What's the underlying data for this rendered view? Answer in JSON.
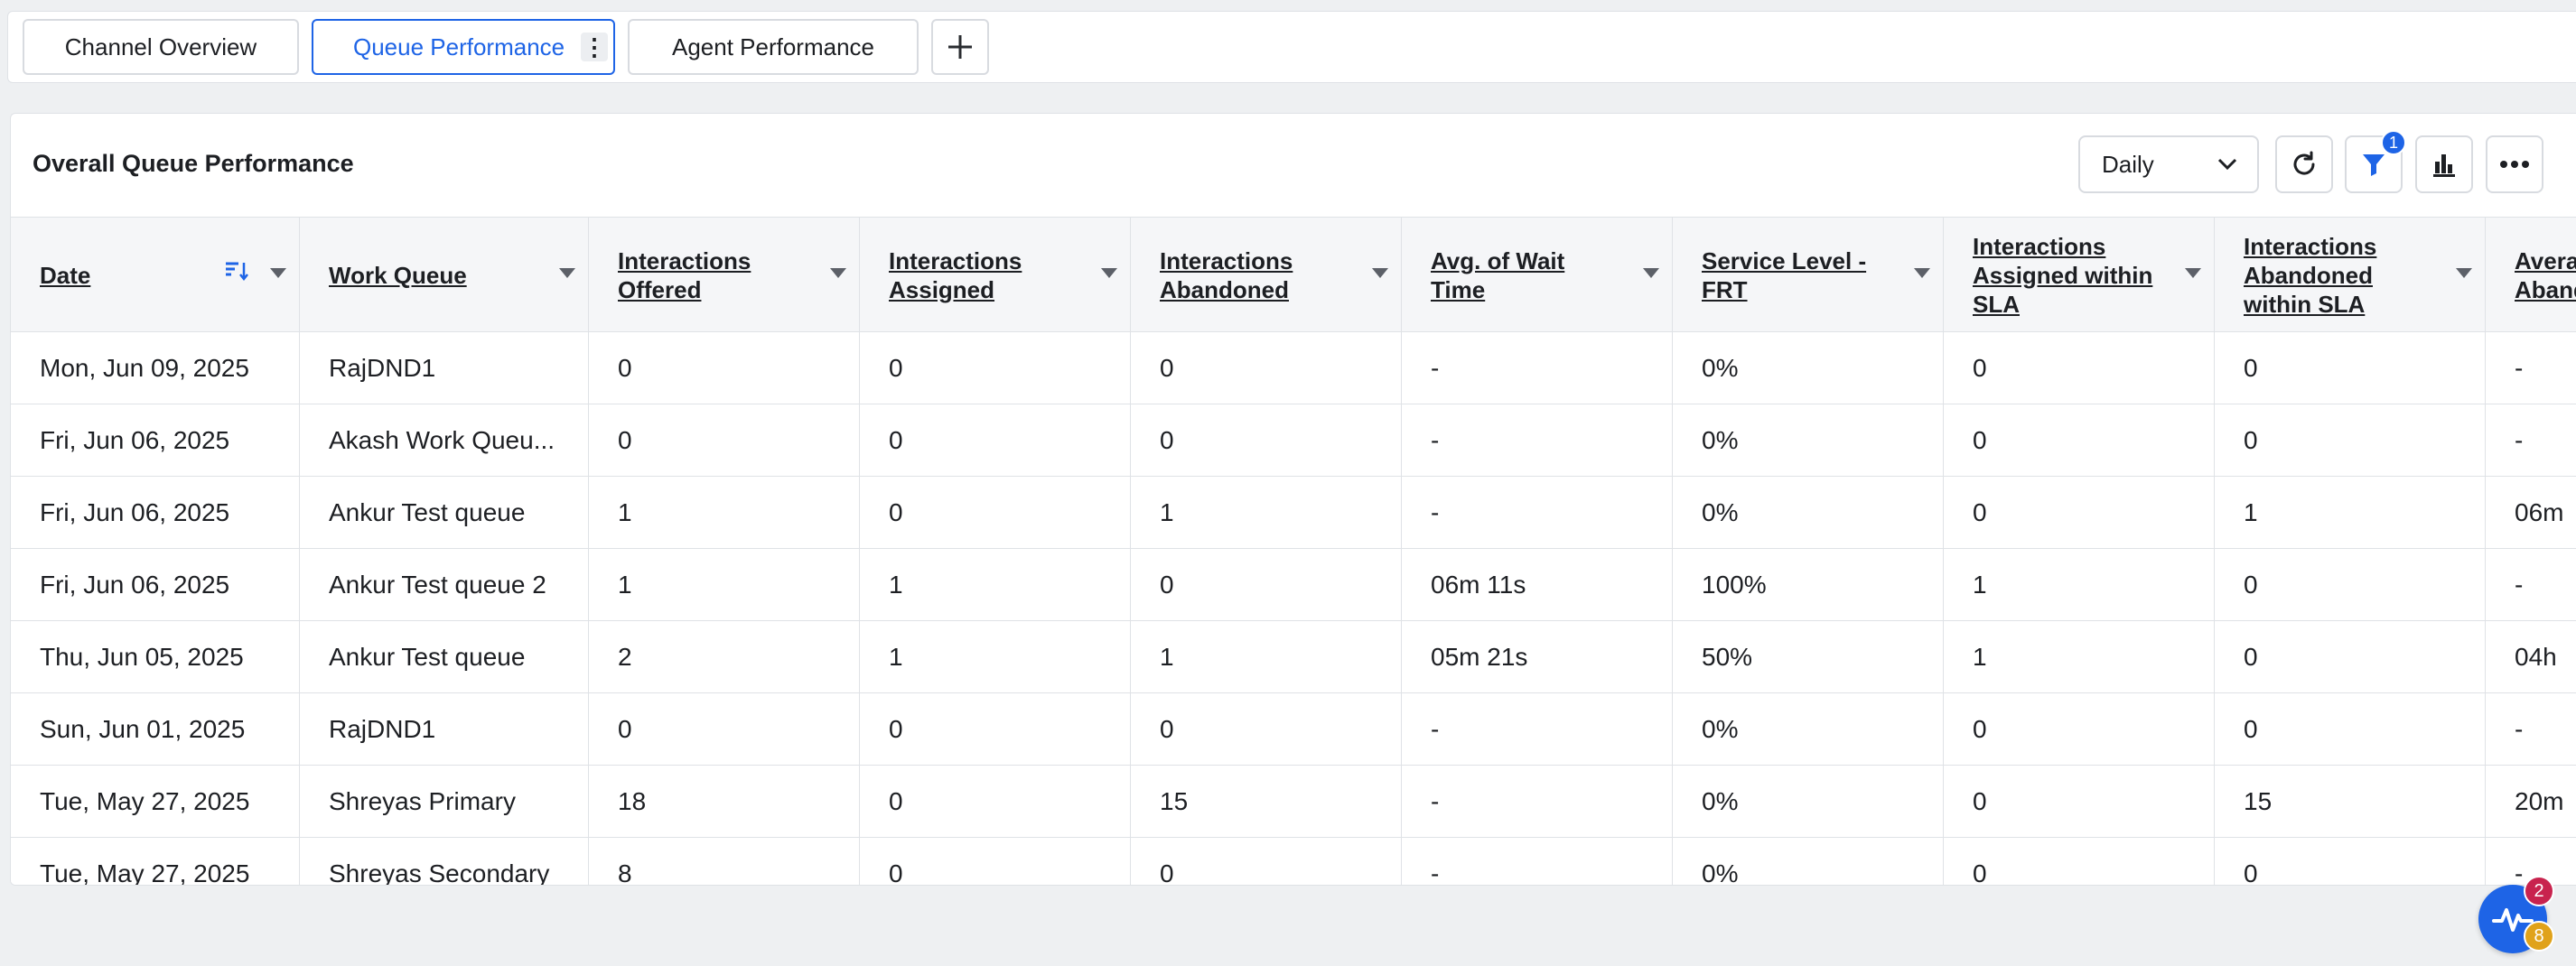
{
  "tabs": [
    {
      "label": "Channel Overview",
      "active": false
    },
    {
      "label": "Queue Performance",
      "active": true
    },
    {
      "label": "Agent Performance",
      "active": false
    }
  ],
  "add_tab_icon": "plus-icon",
  "panel": {
    "title": "Overall Queue Performance",
    "granularity": "Daily",
    "filter_count": "1",
    "icons": [
      "refresh-icon",
      "filter-icon",
      "bar-chart-icon",
      "more-icon"
    ]
  },
  "table": {
    "columns": [
      "Date",
      "Work Queue",
      "Interactions Offered",
      "Interactions Assigned",
      "Interactions Abandoned",
      "Avg. of Wait Time",
      "Service Level - FRT",
      "Interactions Assigned within SLA",
      "Interactions Abandoned within SLA",
      "Average Abandoned"
    ],
    "rows": [
      [
        "Mon, Jun 09, 2025",
        "RajDND1",
        "0",
        "0",
        "0",
        "-",
        "0%",
        "0",
        "0",
        "-"
      ],
      [
        "Fri, Jun 06, 2025",
        "Akash Work Queu...",
        "0",
        "0",
        "0",
        "-",
        "0%",
        "0",
        "0",
        "-"
      ],
      [
        "Fri, Jun 06, 2025",
        "Ankur Test queue",
        "1",
        "0",
        "1",
        "-",
        "0%",
        "0",
        "1",
        "06m"
      ],
      [
        "Fri, Jun 06, 2025",
        "Ankur Test queue 2",
        "1",
        "1",
        "0",
        "06m 11s",
        "100%",
        "1",
        "0",
        "-"
      ],
      [
        "Thu, Jun 05, 2025",
        "Ankur Test queue",
        "2",
        "1",
        "1",
        "05m 21s",
        "50%",
        "1",
        "0",
        "04h"
      ],
      [
        "Sun, Jun 01, 2025",
        "RajDND1",
        "0",
        "0",
        "0",
        "-",
        "0%",
        "0",
        "0",
        "-"
      ],
      [
        "Tue, May 27, 2025",
        "Shreyas Primary",
        "18",
        "0",
        "15",
        "-",
        "0%",
        "0",
        "15",
        "20m"
      ],
      [
        "Tue, May 27, 2025",
        "Shreyas Secondary",
        "8",
        "0",
        "0",
        "-",
        "0%",
        "0",
        "0",
        "-"
      ]
    ]
  },
  "widget": {
    "icon": "activity-icon",
    "alert_count": "2",
    "notification_count": "8"
  },
  "colors": {
    "accent": "#1e64e6",
    "alert_badge": "#c8234e",
    "notification_badge": "#e0a21a"
  }
}
